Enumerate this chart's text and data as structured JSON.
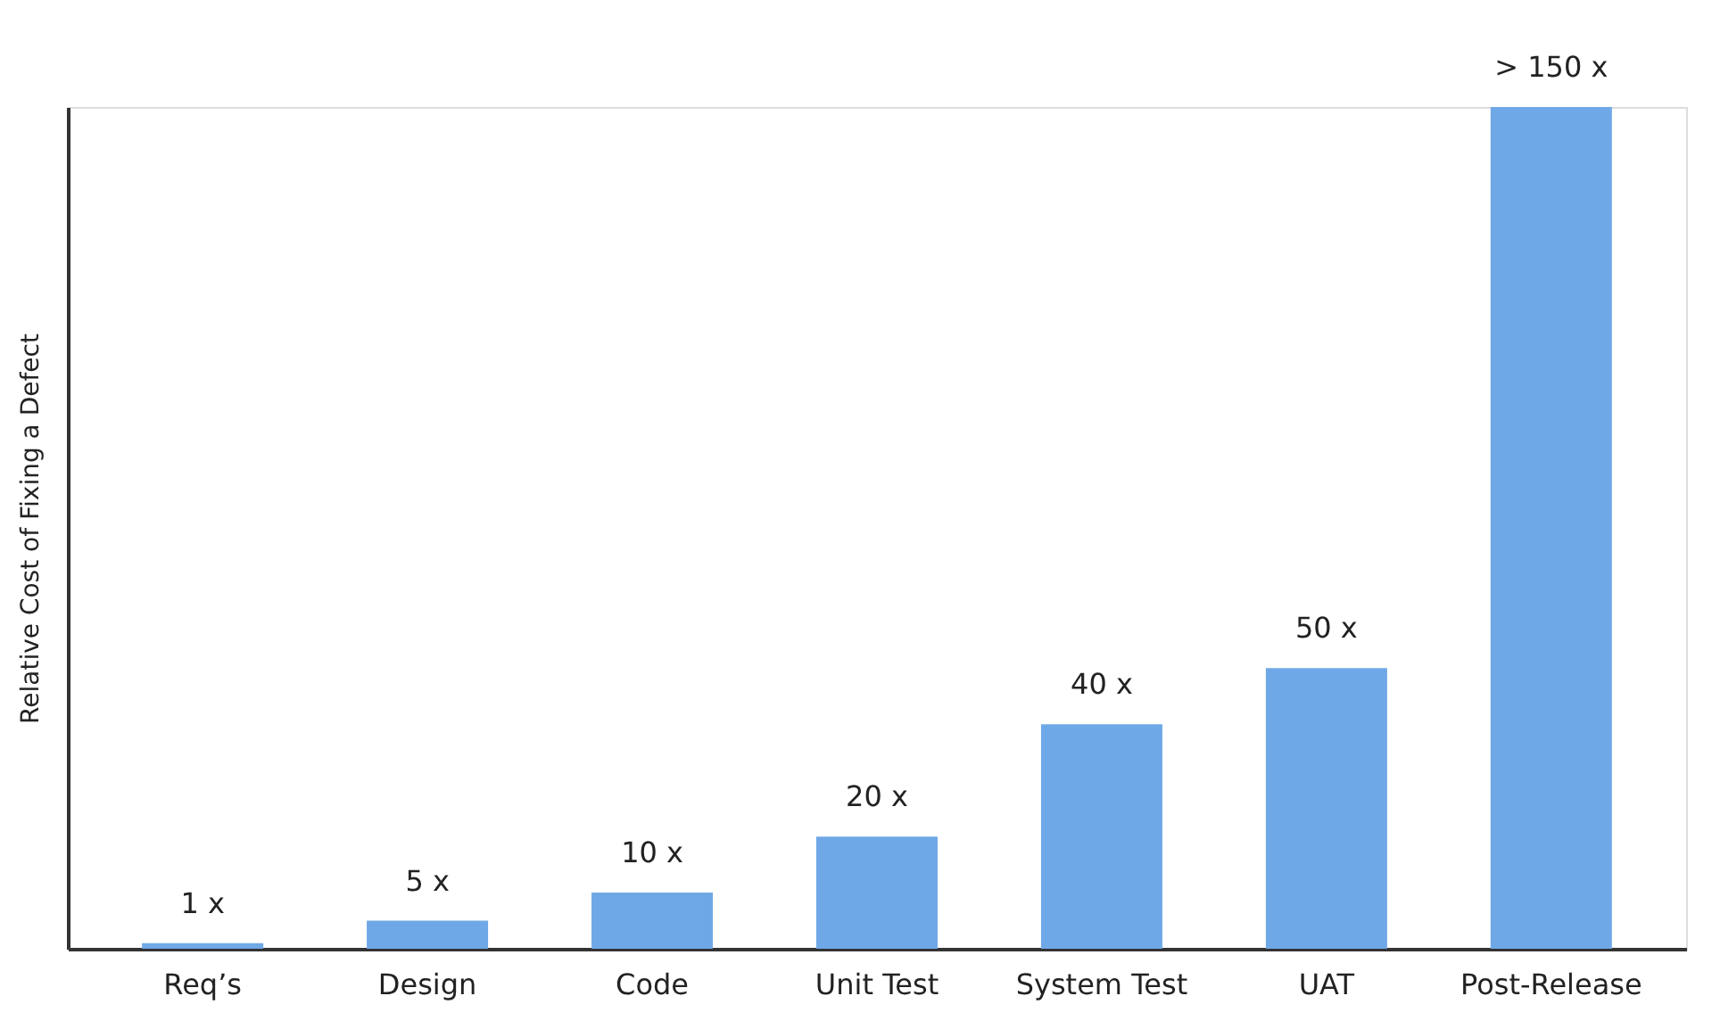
{
  "chart_data": {
    "type": "bar",
    "ylabel": "Relative Cost of Fixing a Defect",
    "categories": [
      "Req’s",
      "Design",
      "Code",
      "Unit Test",
      "System Test",
      "UAT",
      "Post-Release"
    ],
    "values": [
      1,
      5,
      10,
      20,
      40,
      50,
      150
    ],
    "value_labels": [
      "1 x",
      "5 x",
      "10 x",
      "20 x",
      "40 x",
      "50 x",
      "> 150 x"
    ],
    "color": "#6fa8e6"
  }
}
